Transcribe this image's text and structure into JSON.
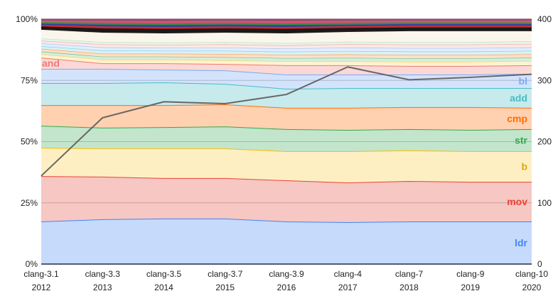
{
  "chart_data": {
    "type": "area",
    "stacked": true,
    "normalized": true,
    "categories": [
      "clang-3.1",
      "clang-3.3",
      "clang-3.5",
      "clang-3.7",
      "clang-3.9",
      "clang-4",
      "clang-7",
      "clang-9",
      "clang-10"
    ],
    "years": [
      "2012",
      "2013",
      "2014",
      "2015",
      "2016",
      "2017",
      "2018",
      "2019",
      "2020"
    ],
    "y_left": {
      "ticks": [
        "0%",
        "25%",
        "50%",
        "75%",
        "100%"
      ],
      "range": [
        0,
        100
      ]
    },
    "y_right": {
      "ticks": [
        "0",
        "100",
        "200",
        "300",
        "400"
      ],
      "range": [
        0,
        400
      ]
    },
    "grid": true,
    "series": [
      {
        "name": "ldr",
        "line": "#4285f4",
        "fill": "#c6dafc",
        "label_color": "#4285f4",
        "values": [
          17.4,
          18.3,
          18.6,
          18.6,
          17.4,
          17.1,
          17.4,
          17.4,
          17.4
        ]
      },
      {
        "name": "mov",
        "line": "#ea4335",
        "fill": "#f6c7c3",
        "label_color": "#ea4335",
        "values": [
          18.5,
          17.4,
          16.5,
          16.5,
          16.8,
          16.2,
          16.5,
          16.2,
          16.2
        ]
      },
      {
        "name": "b",
        "line": "#fbbc04",
        "fill": "#feefc3",
        "label_color": "#e0a800",
        "values": [
          11.6,
          11.5,
          12.1,
          12.1,
          11.9,
          12.8,
          12.5,
          12.5,
          12.5
        ]
      },
      {
        "name": "str",
        "line": "#34a853",
        "fill": "#c3e5cc",
        "label_color": "#34a853",
        "values": [
          9.0,
          8.5,
          8.7,
          9.0,
          9.0,
          8.7,
          8.7,
          8.7,
          9.0
        ]
      },
      {
        "name": "cmp",
        "line": "#ff6d01",
        "fill": "#ffd1b0",
        "label_color": "#ff6d01",
        "values": [
          8.4,
          9.2,
          9.0,
          9.0,
          8.7,
          9.0,
          9.0,
          9.3,
          8.7
        ]
      },
      {
        "name": "add",
        "line": "#46bdc6",
        "fill": "#c7eaed",
        "label_color": "#46bdc6",
        "values": [
          9.0,
          9.0,
          9.3,
          8.4,
          7.8,
          8.1,
          7.8,
          7.8,
          8.1
        ]
      },
      {
        "name": "bl",
        "line": "#7baaf7",
        "fill": "#d4e3fc",
        "label_color": "#7baaf7",
        "values": [
          5.8,
          5.8,
          5.2,
          5.5,
          5.8,
          5.5,
          5.5,
          5.5,
          5.8
        ]
      },
      {
        "name": "and",
        "line": "#f07b72",
        "fill": "#fad8d5",
        "label_color": "#f07b72",
        "label_side": "left",
        "values": [
          4.6,
          2.3,
          2.6,
          2.6,
          3.8,
          3.8,
          3.5,
          3.5,
          3.5
        ]
      },
      {
        "line": "#fcd04f",
        "fill": "#fef3d0",
        "values": [
          1.4,
          1.5,
          1.5,
          1.5,
          1.6,
          1.6,
          1.7,
          1.7,
          1.7
        ]
      },
      {
        "line": "#71c287",
        "fill": "#d5eedc",
        "values": [
          1.1,
          1.2,
          1.2,
          1.3,
          1.3,
          1.4,
          1.4,
          1.4,
          1.4
        ]
      },
      {
        "line": "#ff994d",
        "fill": "#ffe0c9",
        "values": [
          1.1,
          1.2,
          1.2,
          1.3,
          1.3,
          1.4,
          1.4,
          1.4,
          1.4
        ]
      },
      {
        "line": "#7ed1d7",
        "fill": "#daf1f3",
        "values": [
          1.1,
          1.3,
          1.2,
          1.3,
          1.3,
          1.4,
          1.4,
          1.4,
          1.4
        ]
      },
      {
        "line": "#a0c3ff",
        "fill": "#e3edfd",
        "values": [
          1.1,
          1.3,
          1.2,
          1.3,
          1.3,
          1.4,
          1.4,
          1.4,
          1.4
        ]
      },
      {
        "line": "#f4a9a3",
        "fill": "#fce8e6",
        "values": [
          1.1,
          1.2,
          1.2,
          1.3,
          1.3,
          1.4,
          1.4,
          1.4,
          1.4
        ]
      },
      {
        "line": "#b7e1cd",
        "fill": "#e6f4ea",
        "values": [
          0.9,
          1.0,
          1.0,
          1.0,
          1.0,
          1.0,
          1.1,
          1.1,
          1.1
        ]
      },
      {
        "line": "#f6efe0",
        "fill": "#fbf6ec",
        "values": [
          3.6,
          3.8,
          3.7,
          3.8,
          3.9,
          4.0,
          4.4,
          4.4,
          4.1
        ]
      },
      {
        "line": "#111111",
        "fill": "#1a1a1a",
        "values": [
          1.3,
          1.7,
          1.8,
          1.7,
          1.8,
          1.6,
          1.5,
          1.5,
          1.5
        ]
      },
      {
        "line": "#e53935",
        "fill": "#c62828",
        "values": [
          0.6,
          0.8,
          0.8,
          0.8,
          0.8,
          0.7,
          0.7,
          0.7,
          0.7
        ]
      },
      {
        "line": "#3949ab",
        "fill": "#303f9f",
        "values": [
          0.6,
          0.8,
          0.8,
          0.8,
          0.8,
          0.7,
          0.7,
          0.7,
          0.7
        ]
      },
      {
        "line": "#43a047",
        "fill": "#388e3c",
        "values": [
          0.6,
          0.8,
          0.8,
          0.8,
          0.8,
          0.8,
          0.7,
          0.7,
          0.7
        ]
      },
      {
        "line": "#f06292",
        "fill": "#ec407a",
        "values": [
          0.6,
          0.7,
          0.8,
          0.7,
          0.8,
          0.7,
          0.7,
          0.7,
          0.7
        ]
      },
      {
        "line": "#8e4b6b",
        "fill": "#8e4b6b",
        "values": [
          0.6,
          0.7,
          0.8,
          0.7,
          0.8,
          0.7,
          0.6,
          0.6,
          0.6
        ]
      }
    ],
    "line_series": {
      "axis": "right",
      "color": "#666666",
      "values": [
        144,
        239,
        265,
        262,
        277,
        322,
        301,
        305,
        310
      ]
    }
  }
}
